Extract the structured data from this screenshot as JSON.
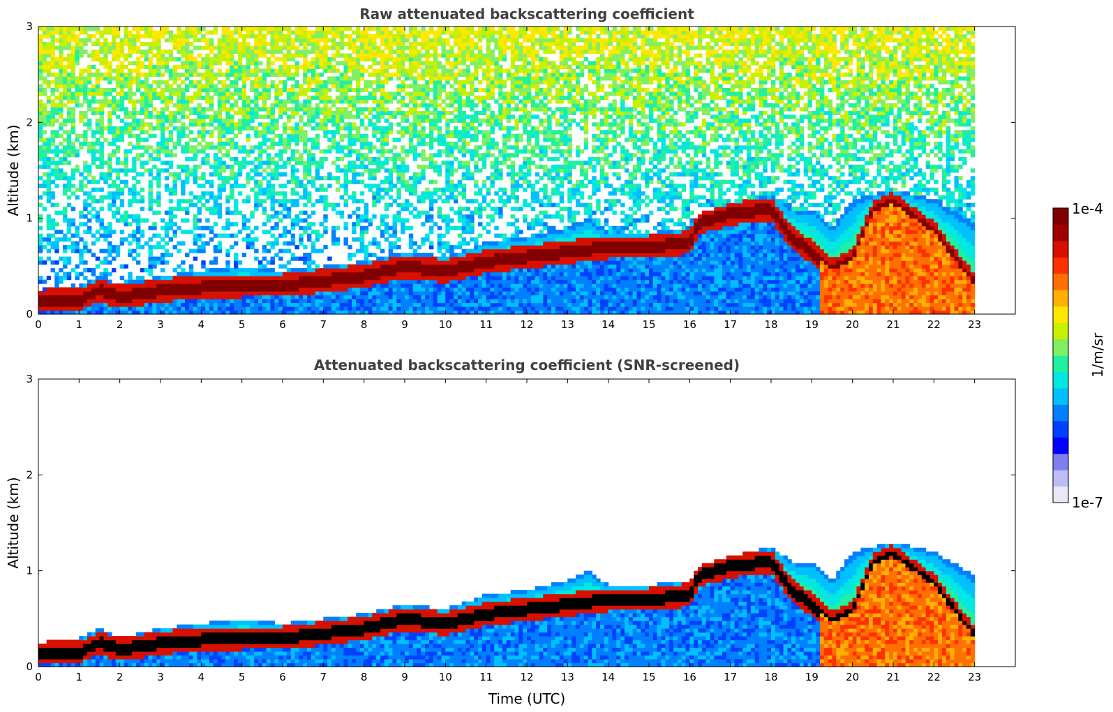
{
  "colors": {
    "colormap": [
      "#ffffff",
      "#e8e8f8",
      "#bdbdf5",
      "#7f7ff0",
      "#0000ff",
      "#0040ff",
      "#0080ff",
      "#00c0ff",
      "#00e8e0",
      "#20f0a0",
      "#80f060",
      "#c8f000",
      "#ffe800",
      "#ffb000",
      "#ff7000",
      "#ff3000",
      "#d81000",
      "#a00000",
      "#800000"
    ],
    "screened_core": "#000000",
    "axis": "#000000"
  },
  "chart_data": [
    {
      "type": "heatmap",
      "title": "Raw attenuated backscattering coefficient",
      "xlabel": "",
      "ylabel": "Altitude (km)",
      "xlim": [
        0,
        24
      ],
      "ylim": [
        0,
        3
      ],
      "x_ticks": [
        "0",
        "1",
        "2",
        "3",
        "4",
        "5",
        "6",
        "7",
        "8",
        "9",
        "10",
        "11",
        "12",
        "13",
        "14",
        "15",
        "16",
        "17",
        "18",
        "19",
        "20",
        "21",
        "22",
        "23"
      ],
      "y_ticks": [
        "0",
        "1",
        "2",
        "3"
      ],
      "time_coverage_hours": [
        0,
        23
      ],
      "noise_visible": true,
      "layer_top_km": [
        [
          0,
          0.25
        ],
        [
          1,
          0.3
        ],
        [
          1.5,
          0.4
        ],
        [
          2,
          0.3
        ],
        [
          3,
          0.4
        ],
        [
          4,
          0.45
        ],
        [
          5,
          0.5
        ],
        [
          6,
          0.45
        ],
        [
          7,
          0.5
        ],
        [
          8,
          0.55
        ],
        [
          9,
          0.65
        ],
        [
          10,
          0.6
        ],
        [
          11,
          0.75
        ],
        [
          12,
          0.8
        ],
        [
          13,
          0.9
        ],
        [
          13.5,
          1.0
        ],
        [
          14,
          0.85
        ],
        [
          15,
          0.85
        ],
        [
          16,
          0.9
        ],
        [
          16.2,
          1.05
        ],
        [
          17,
          1.15
        ],
        [
          18,
          1.25
        ],
        [
          18.5,
          1.1
        ],
        [
          19,
          1.1
        ],
        [
          19.5,
          0.9
        ],
        [
          20,
          1.2
        ],
        [
          20.5,
          1.25
        ],
        [
          21,
          1.3
        ],
        [
          22,
          1.2
        ],
        [
          23,
          0.95
        ]
      ],
      "peak_layer_km": [
        [
          0,
          0.15
        ],
        [
          1,
          0.15
        ],
        [
          1.5,
          0.25
        ],
        [
          2,
          0.18
        ],
        [
          3,
          0.25
        ],
        [
          4,
          0.28
        ],
        [
          5,
          0.3
        ],
        [
          6,
          0.3
        ],
        [
          7,
          0.35
        ],
        [
          8,
          0.4
        ],
        [
          9,
          0.5
        ],
        [
          10,
          0.45
        ],
        [
          11,
          0.55
        ],
        [
          12,
          0.6
        ],
        [
          13,
          0.65
        ],
        [
          14,
          0.7
        ],
        [
          15,
          0.7
        ],
        [
          16,
          0.75
        ],
        [
          16.2,
          0.95
        ],
        [
          17,
          1.05
        ],
        [
          18,
          1.1
        ],
        [
          18.5,
          0.8
        ],
        [
          19,
          0.65
        ],
        [
          19.5,
          0.45
        ],
        [
          20,
          0.55
        ],
        [
          20.5,
          1.05
        ],
        [
          21,
          1.15
        ],
        [
          22,
          0.85
        ],
        [
          23,
          0.3
        ]
      ],
      "colorbar": {
        "label": "1/m/sr",
        "min_label": "1e-7",
        "max_label": "1e-4",
        "scale": "log"
      }
    },
    {
      "type": "heatmap",
      "title": "Attenuated backscattering coefficient (SNR-screened)",
      "xlabel": "Time (UTC)",
      "ylabel": "Altitude (km)",
      "xlim": [
        0,
        24
      ],
      "ylim": [
        0,
        3
      ],
      "x_ticks": [
        "0",
        "1",
        "2",
        "3",
        "4",
        "5",
        "6",
        "7",
        "8",
        "9",
        "10",
        "11",
        "12",
        "13",
        "14",
        "15",
        "16",
        "17",
        "18",
        "19",
        "20",
        "21",
        "22",
        "23"
      ],
      "y_ticks": [
        "0",
        "1",
        "2",
        "3"
      ],
      "time_coverage_hours": [
        0,
        23
      ],
      "noise_visible": false,
      "same_profile_as": 0
    }
  ]
}
